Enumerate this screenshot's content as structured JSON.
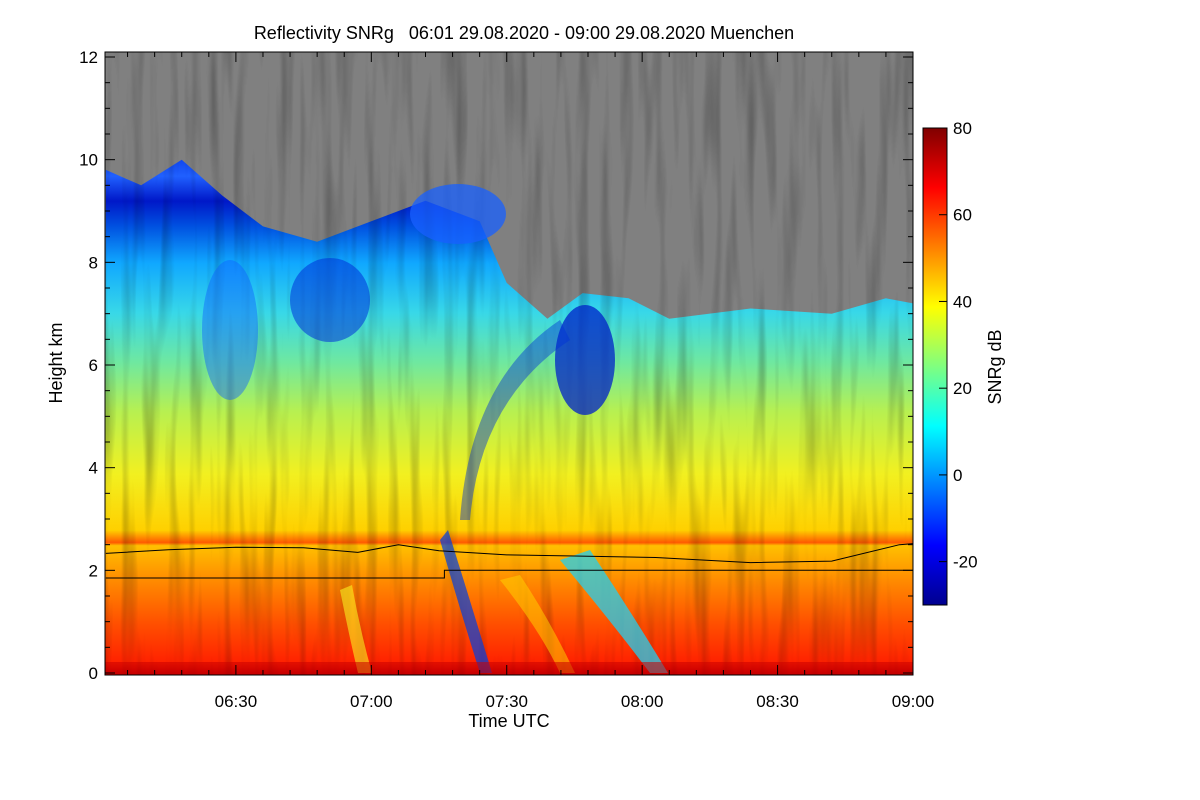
{
  "chart_data": {
    "type": "heatmap",
    "title": "Reflectivity SNRg   06:01 29.08.2020 - 09:00 29.08.2020 Muenchen",
    "xlabel": "Time UTC",
    "ylabel": "Height km",
    "x_range_hours": [
      6.0167,
      9.0
    ],
    "x_ticks": [
      {
        "value": 6.5,
        "label": "06:30"
      },
      {
        "value": 7.0,
        "label": "07:00"
      },
      {
        "value": 7.5,
        "label": "07:30"
      },
      {
        "value": 8.0,
        "label": "08:00"
      },
      {
        "value": 8.5,
        "label": "08:30"
      },
      {
        "value": 9.0,
        "label": "09:00"
      }
    ],
    "ylim": [
      0,
      12
    ],
    "y_ticks": [
      0,
      2,
      4,
      6,
      8,
      10,
      12
    ],
    "colorbar": {
      "label": "SNRg dB",
      "range": [
        -30,
        80
      ],
      "ticks": [
        80,
        60,
        40,
        20,
        0,
        -20
      ],
      "colormap": "jet"
    },
    "no_data_color": "#808080",
    "cloud_top_km": [
      [
        6.02,
        9.8
      ],
      [
        6.15,
        9.5
      ],
      [
        6.3,
        10.0
      ],
      [
        6.45,
        9.3
      ],
      [
        6.6,
        8.7
      ],
      [
        6.8,
        8.4
      ],
      [
        7.0,
        8.8
      ],
      [
        7.2,
        9.2
      ],
      [
        7.4,
        8.8
      ],
      [
        7.5,
        7.6
      ],
      [
        7.65,
        6.9
      ],
      [
        7.78,
        7.4
      ],
      [
        7.95,
        7.3
      ],
      [
        8.1,
        6.9
      ],
      [
        8.4,
        7.1
      ],
      [
        8.7,
        7.0
      ],
      [
        8.9,
        7.3
      ],
      [
        9.0,
        7.2
      ]
    ],
    "mixing_layer_upper_km": [
      [
        6.02,
        2.33
      ],
      [
        6.25,
        2.4
      ],
      [
        6.5,
        2.45
      ],
      [
        6.75,
        2.44
      ],
      [
        6.95,
        2.35
      ],
      [
        7.1,
        2.5
      ],
      [
        7.25,
        2.38
      ],
      [
        7.5,
        2.3
      ],
      [
        7.75,
        2.28
      ],
      [
        8.05,
        2.25
      ],
      [
        8.4,
        2.15
      ],
      [
        8.7,
        2.18
      ],
      [
        8.95,
        2.5
      ],
      [
        9.0,
        2.52
      ]
    ],
    "mixing_layer_lower_km": [
      [
        6.02,
        1.85
      ],
      [
        7.27,
        1.85
      ],
      [
        7.27,
        2.0
      ],
      [
        9.0,
        2.0
      ]
    ]
  }
}
